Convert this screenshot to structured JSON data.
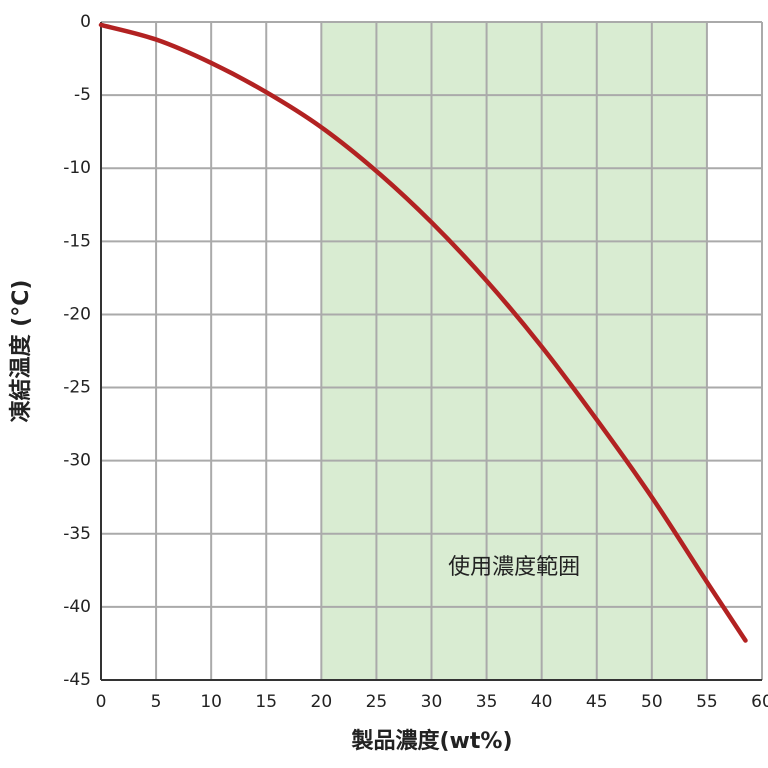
{
  "chart_data": {
    "type": "line",
    "x_label": "製品濃度(wt%)",
    "y_label": "凍結温度 (°C)",
    "x": [
      0,
      5,
      10,
      15,
      20,
      25,
      30,
      35,
      40,
      45,
      50,
      55,
      58.5
    ],
    "series": [
      {
        "color": "#b22222",
        "values": [
          -0.2,
          -1.2,
          -2.8,
          -4.8,
          -7.2,
          -10.2,
          -13.7,
          -17.7,
          -22.2,
          -27.2,
          -32.5,
          -38.3,
          -42.3
        ]
      }
    ],
    "xlim": [
      0,
      60
    ],
    "xticks": [
      0,
      5,
      10,
      15,
      20,
      25,
      30,
      35,
      40,
      45,
      50,
      55,
      60
    ],
    "ylim": [
      -45,
      0
    ],
    "yticks": [
      0,
      -5,
      -10,
      -15,
      -20,
      -25,
      -30,
      -35,
      -40,
      -45
    ],
    "grid": true,
    "band": {
      "x": [
        20,
        55
      ],
      "label": "使用濃度範囲",
      "color": "#d9ecd2"
    }
  }
}
